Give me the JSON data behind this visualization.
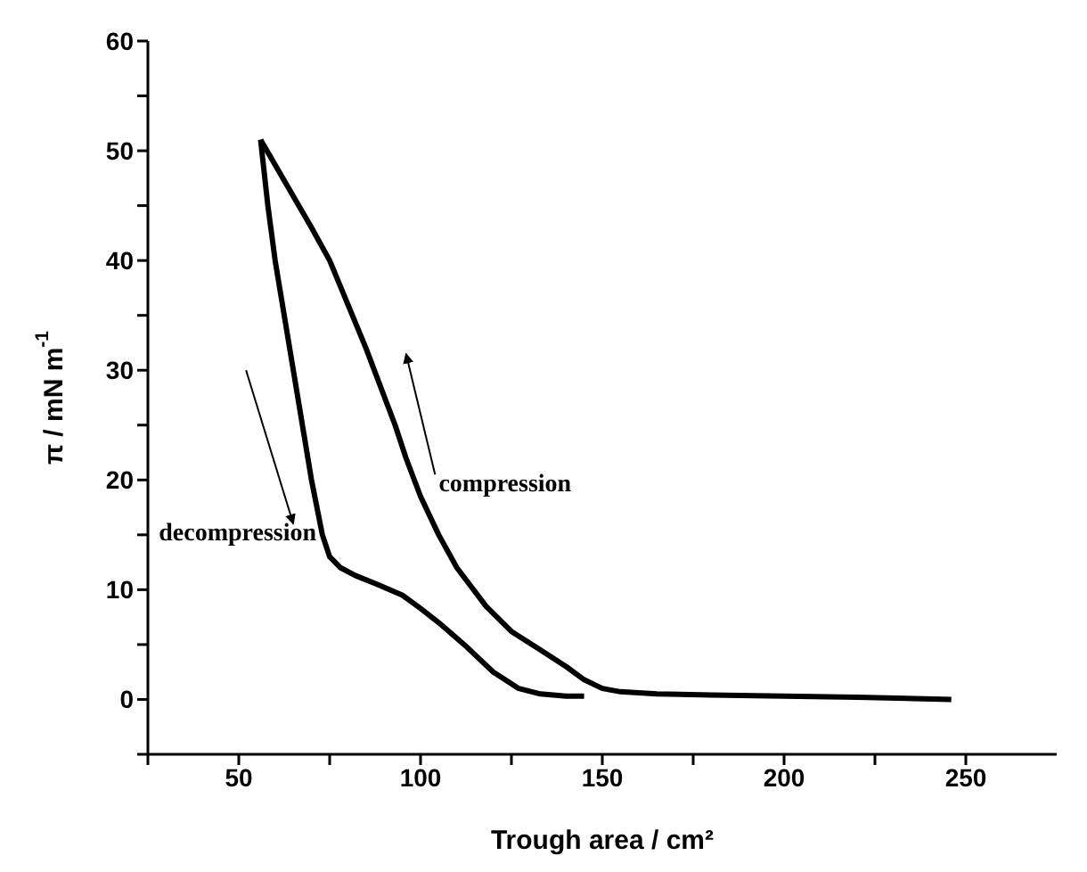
{
  "chart_data": {
    "type": "line",
    "xlabel": "Trough area / cm²",
    "ylabel": "π / mN m$^{-1}$",
    "xlim": [
      25,
      275
    ],
    "ylim": [
      -5,
      60
    ],
    "xticks": [
      {
        "value": 25,
        "label": null
      },
      50,
      {
        "value": 75,
        "label": null
      },
      100,
      {
        "value": 125,
        "label": null
      },
      150,
      {
        "value": 175,
        "label": null
      },
      200,
      {
        "value": 225,
        "label": null
      },
      250
    ],
    "yticks": [
      {
        "value": -5,
        "label": null
      },
      0,
      {
        "value": 5,
        "label": null
      },
      10,
      {
        "value": 15,
        "label": null
      },
      20,
      {
        "value": 25,
        "label": null
      },
      30,
      {
        "value": 35,
        "label": null
      },
      40,
      {
        "value": 45,
        "label": null
      },
      50,
      {
        "value": 55,
        "label": null
      },
      60
    ],
    "grid": false,
    "marker": "none",
    "line_style": "solid",
    "annotations": [
      "compression",
      "decompression"
    ],
    "series": [
      {
        "color": "#000000",
        "x": [
          246,
          220,
          200,
          180,
          165,
          155,
          150,
          145,
          140,
          133,
          125,
          118,
          110,
          105,
          100,
          96,
          93,
          89,
          85,
          80,
          75,
          70,
          63,
          56
        ],
        "values": [
          0,
          0.2,
          0.3,
          0.4,
          0.5,
          0.7,
          1,
          1.8,
          3,
          4.5,
          6.2,
          8.5,
          12,
          15,
          18.5,
          22,
          25,
          28.5,
          32,
          36,
          40,
          43,
          47,
          51
        ]
      },
      {
        "color": "#000000",
        "x": [
          56,
          58,
          60,
          63,
          65,
          68,
          70,
          73,
          75,
          78,
          82,
          88,
          95,
          100,
          105,
          112,
          120,
          127,
          133,
          140,
          145
        ],
        "values": [
          51,
          45,
          40,
          34,
          30,
          24,
          20,
          15,
          13,
          12,
          11.3,
          10.5,
          9.5,
          8.3,
          7,
          5,
          2.5,
          1,
          0.5,
          0.3,
          0.3
        ]
      }
    ]
  }
}
